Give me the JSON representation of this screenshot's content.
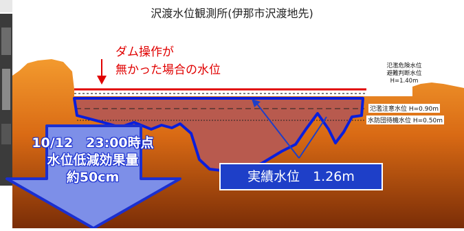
{
  "title": "沢渡水位観測所(伊那市沢渡地先)",
  "dam_note": [
    "ダム操作が",
    "無かった場合の水位"
  ],
  "levels": {
    "danger": [
      "氾濫危険水位",
      "避難判断水位",
      "H=1.40m"
    ],
    "caution": "氾濫注意水位 H=0.90m",
    "standby": "水防団待機水位 H=0.50m"
  },
  "actual_level": "実績水位　1.26m",
  "effect": [
    "10/12　23:00時点",
    "水位低減効果量",
    "約50cm"
  ],
  "colors": {
    "no_dam_line": "#e00000",
    "actual_line": "#0a1edc",
    "water_fill": "#b85a4e",
    "ground": "#e07a18",
    "arrow": "#7d8fe8",
    "label_box": "#1e3fc8"
  }
}
